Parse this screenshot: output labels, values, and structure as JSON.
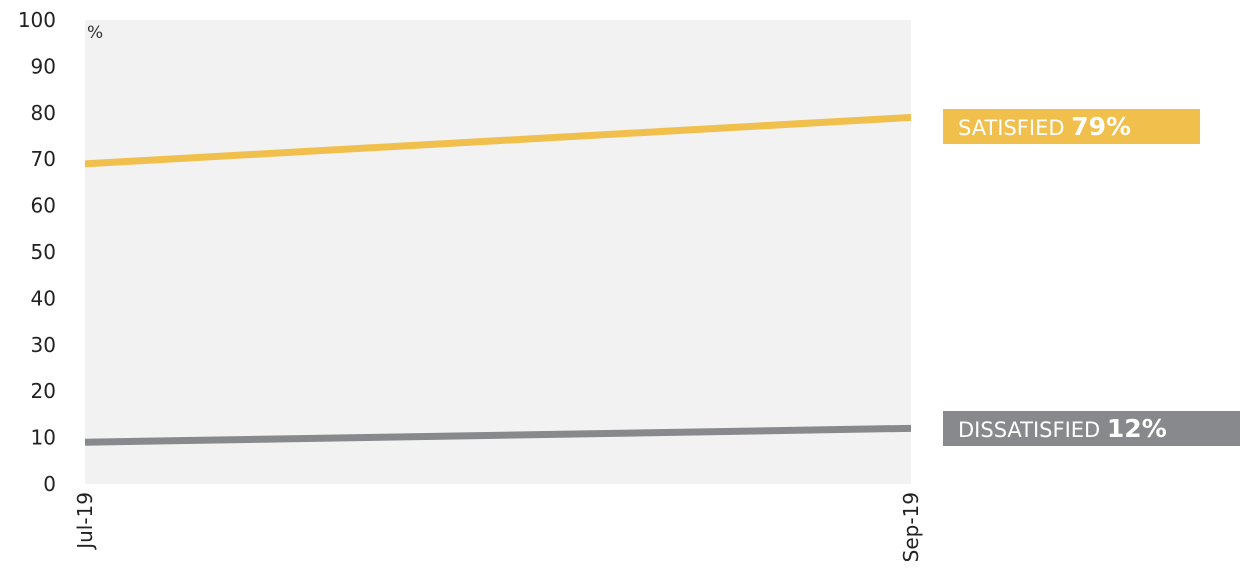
{
  "chart_data": {
    "type": "line",
    "categories": [
      "Jul-19",
      "Sep-19"
    ],
    "unit_label": "%",
    "ylim": [
      0,
      100
    ],
    "yticks": [
      0,
      10,
      20,
      30,
      40,
      50,
      60,
      70,
      80,
      90,
      100
    ],
    "grid": false,
    "series": [
      {
        "name": "SATISFIED",
        "values": [
          69,
          79
        ],
        "end_label": "79%",
        "color": "#f0bf4c"
      },
      {
        "name": "DISSATISFIED",
        "values": [
          9,
          12
        ],
        "end_label": "12%",
        "color": "#87898c"
      }
    ],
    "colors": {
      "plot_background": "#f2f2f2",
      "satisfied": "#f0bf4c",
      "dissatisfied": "#87898c"
    }
  }
}
